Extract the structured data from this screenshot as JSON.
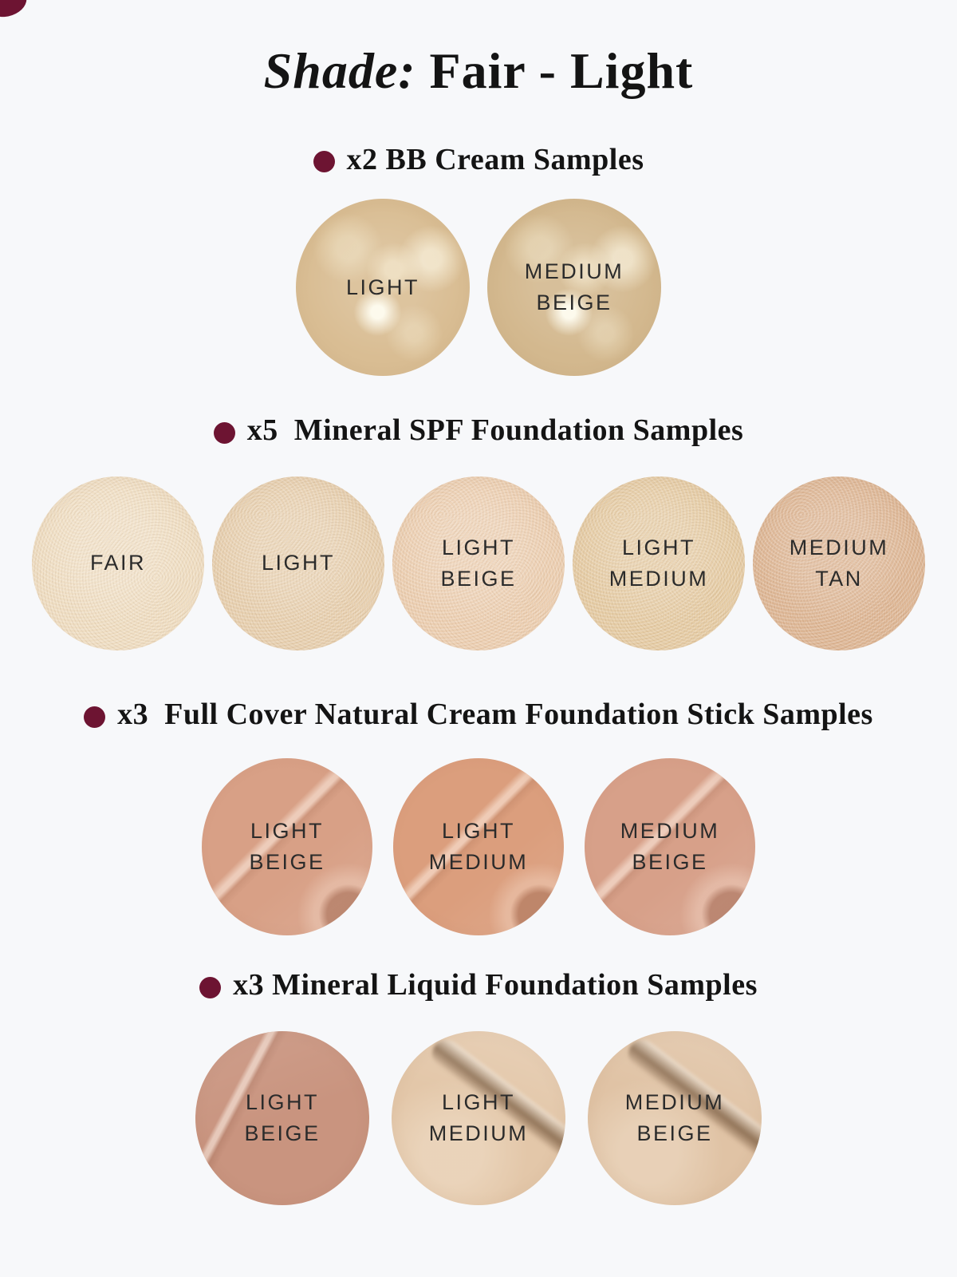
{
  "page": {
    "background": "#f7f8fa",
    "accent": "#6d1432",
    "heading_color": "#141414",
    "label_color": "#2b2b2b"
  },
  "icons": {
    "bullet_dot": "filled-circle",
    "corner_accent": "maroon-ellipse"
  },
  "title": {
    "italic": "Shade:",
    "rest": " Fair - Light"
  },
  "sections": [
    {
      "heading": "x2 BB Cream Samples",
      "swatches": [
        {
          "label": "LIGHT",
          "color": "#d9bd93"
        },
        {
          "label": "MEDIUM\nBEIGE",
          "color": "#d3b88e"
        }
      ]
    },
    {
      "heading": "x5  Mineral SPF Foundation Samples",
      "swatches": [
        {
          "label": "FAIR",
          "color": "#efddc1"
        },
        {
          "label": "LIGHT",
          "color": "#e7cfae"
        },
        {
          "label": "LIGHT\nBEIGE",
          "color": "#ecceb0"
        },
        {
          "label": "LIGHT\nMEDIUM",
          "color": "#e5cba3"
        },
        {
          "label": "MEDIUM\nTAN",
          "color": "#ddb593"
        }
      ]
    },
    {
      "heading": "x3  Full Cover Natural Cream Foundation Stick Samples",
      "swatches": [
        {
          "label": "LIGHT\nBEIGE",
          "color": "#d8a086"
        },
        {
          "label": "LIGHT\nMEDIUM",
          "color": "#db9e7d"
        },
        {
          "label": "MEDIUM\nBEIGE",
          "color": "#d7a089"
        }
      ]
    },
    {
      "heading": "x3 Mineral Liquid Foundation Samples",
      "swatches": [
        {
          "label": "LIGHT\nBEIGE",
          "color": "#c9947f"
        },
        {
          "label": "LIGHT\nMEDIUM",
          "color": "#e3c7a9"
        },
        {
          "label": "MEDIUM\nBEIGE",
          "color": "#e0c3a5"
        }
      ]
    }
  ]
}
